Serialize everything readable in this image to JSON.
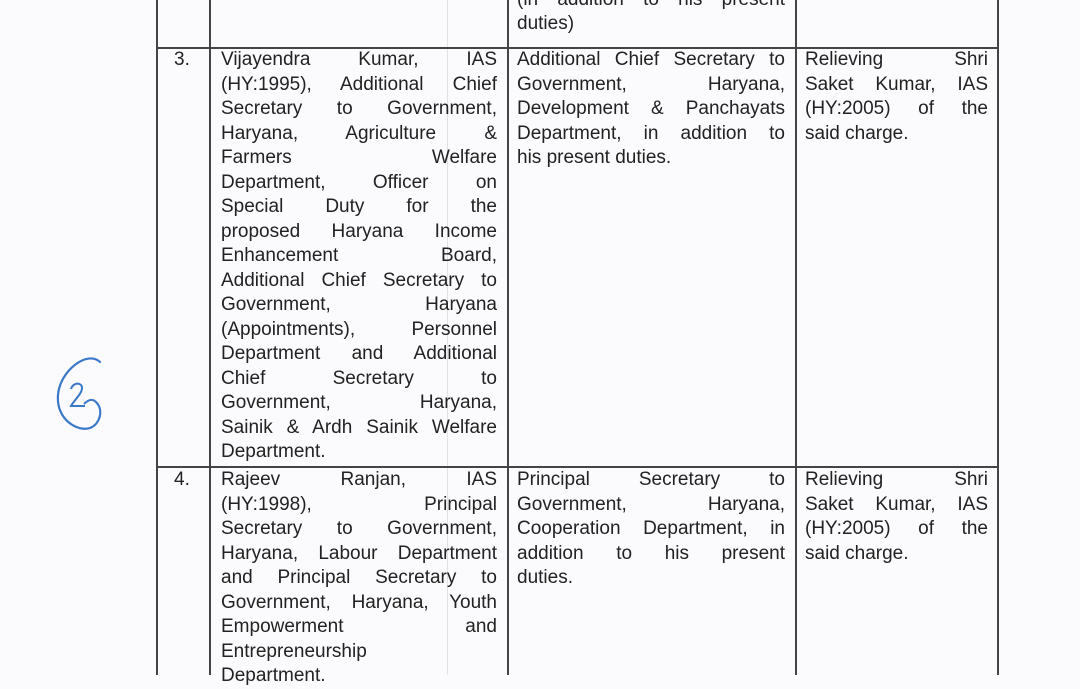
{
  "rows": [
    {
      "number": "",
      "officer_lines": [],
      "posting_lines": [
        "(in addition to his present",
        "duties)"
      ],
      "remarks_lines": []
    },
    {
      "number": "3.",
      "officer_lines": [
        "Vijayendra Kumar, IAS",
        "(HY:1995), Additional Chief",
        "Secretary to Government,",
        "Haryana, Agriculture &",
        "Farmers Welfare",
        "Department, Officer on",
        "Special Duty for the",
        "proposed Haryana Income",
        "Enhancement Board,",
        "Additional Chief Secretary to",
        "Government, Haryana",
        "(Appointments), Personnel",
        "Department and Additional",
        "Chief Secretary to",
        "Government, Haryana,",
        "Sainik & Ardh Sainik Welfare",
        "Department."
      ],
      "posting_lines": [
        "Additional Chief Secretary to",
        "Government, Haryana,",
        "Development & Panchayats",
        "Department, in addition to",
        "his present duties."
      ],
      "remarks_lines": [
        "Relieving Shri",
        "Saket Kumar, IAS",
        "(HY:2005) of the",
        "said charge."
      ]
    },
    {
      "number": "4.",
      "officer_lines": [
        "Rajeev Ranjan, IAS",
        "(HY:1998), Principal",
        "Secretary to Government,",
        "Haryana, Labour Department",
        "and Principal Secretary to",
        "Government, Haryana, Youth",
        "Empowerment and",
        "Entrepreneurship",
        "Department."
      ],
      "posting_lines": [
        "Principal Secretary to",
        "Government, Haryana,",
        "Cooperation Department, in",
        "addition to his present",
        "duties."
      ],
      "remarks_lines": [
        "Relieving Shri",
        "Saket Kumar, IAS",
        "(HY:2005) of the",
        "said charge."
      ]
    }
  ],
  "annotation": {
    "handwritten_mark": "2",
    "ink_color": "#3a78c8"
  }
}
